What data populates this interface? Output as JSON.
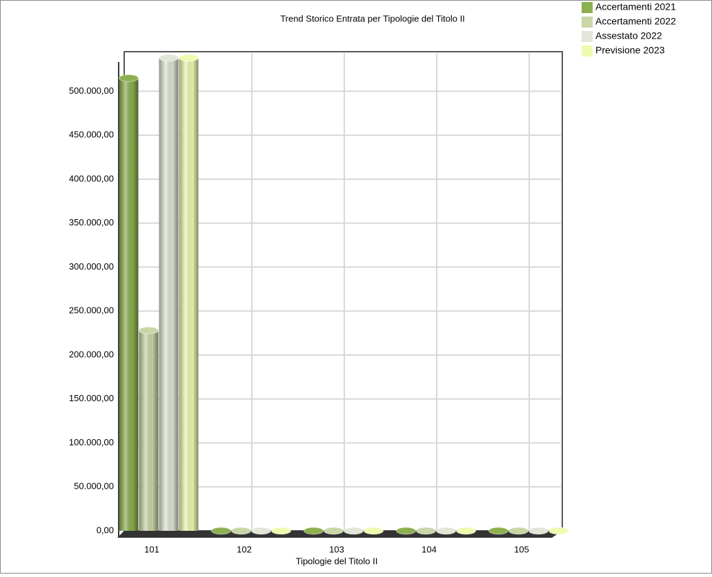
{
  "chart_data": {
    "type": "bar",
    "title": "Trend Storico Entrata per Tipologie del Titolo II",
    "x_label": "Tipologie del Titolo II",
    "categories": [
      "101",
      "102",
      "103",
      "104",
      "105"
    ],
    "series": [
      {
        "name": "Accertamenti 2021",
        "color": "#8db050",
        "values": [
          515000,
          0,
          0,
          0,
          0
        ]
      },
      {
        "name": "Accertamenti 2022",
        "color": "#c9d6a6",
        "values": [
          228000,
          0,
          0,
          0,
          0
        ]
      },
      {
        "name": "Assestato 2022",
        "color": "#e1e6d6",
        "values": [
          538000,
          0,
          0,
          0,
          0
        ]
      },
      {
        "name": "Previsione 2023",
        "color": "#eefbb0",
        "values": [
          538000,
          0,
          0,
          0,
          0
        ]
      }
    ],
    "ylim": [
      0,
      545000
    ],
    "yticks": [
      {
        "value": 0,
        "label": "0,00"
      },
      {
        "value": 50000,
        "label": "50.000,00"
      },
      {
        "value": 100000,
        "label": "100.000,00"
      },
      {
        "value": 150000,
        "label": "150.000,00"
      },
      {
        "value": 200000,
        "label": "200.000,00"
      },
      {
        "value": 250000,
        "label": "250.000,00"
      },
      {
        "value": 300000,
        "label": "300.000,00"
      },
      {
        "value": 350000,
        "label": "350.000,00"
      },
      {
        "value": 400000,
        "label": "400.000,00"
      },
      {
        "value": 450000,
        "label": "450.000,00"
      },
      {
        "value": 500000,
        "label": "500.000,00"
      }
    ],
    "grid": true,
    "legend": "top-right"
  }
}
